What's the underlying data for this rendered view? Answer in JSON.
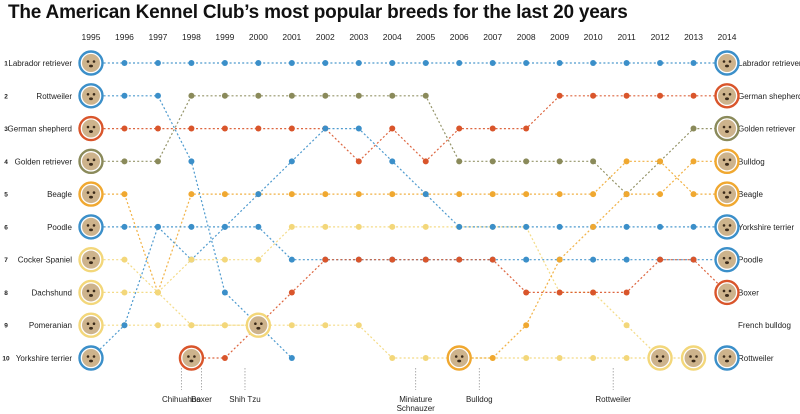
{
  "chart_data": {
    "type": "line",
    "title": "The American Kennel Club’s most popular breeds for the last 20 years",
    "x": [
      1995,
      1996,
      1997,
      1998,
      1999,
      2000,
      2001,
      2002,
      2003,
      2004,
      2005,
      2006,
      2007,
      2008,
      2009,
      2010,
      2011,
      2012,
      2013,
      2014
    ],
    "ranks": [
      1,
      2,
      3,
      4,
      5,
      6,
      7,
      8,
      9,
      10
    ],
    "left_labels": [
      "Labrador retriever",
      "Rottweiler",
      "German shepherd",
      "Golden retriever",
      "Beagle",
      "Poodle",
      "Cocker Spaniel",
      "Dachshund",
      "Pomeranian",
      "Yorkshire terrier"
    ],
    "right_labels": [
      "Labrador retriever",
      "German shepherd",
      "Golden retriever",
      "Bulldog",
      "Beagle",
      "Yorkshire terrier",
      "Poodle",
      "Boxer",
      "French bulldog",
      "Rottweiler"
    ],
    "annotations": [
      {
        "text": "Chihuahua",
        "year": 1997.7
      },
      {
        "text": "Boxer",
        "year": 1998.3
      },
      {
        "text": "Shih Tzu",
        "year": 1999.6
      },
      {
        "text": "Miniature Schnauzer",
        "year": 2004.7
      },
      {
        "text": "Bulldog",
        "year": 2006.6
      },
      {
        "text": "Rottweiler",
        "year": 2010.6
      }
    ],
    "series": [
      {
        "name": "Labrador retriever",
        "color": "#3b8fc9",
        "ranks": [
          1,
          1,
          1,
          1,
          1,
          1,
          1,
          1,
          1,
          1,
          1,
          1,
          1,
          1,
          1,
          1,
          1,
          1,
          1,
          1
        ]
      },
      {
        "name": "Rottweiler",
        "color": "#3b8fc9",
        "ranks": [
          2,
          2,
          2,
          4,
          8,
          9,
          10,
          null,
          null,
          null,
          null,
          null,
          null,
          null,
          null,
          null,
          null,
          null,
          null,
          10
        ]
      },
      {
        "name": "German shepherd",
        "color": "#d9552b",
        "ranks": [
          3,
          3,
          3,
          3,
          3,
          3,
          3,
          3,
          4,
          3,
          4,
          3,
          3,
          3,
          2,
          2,
          2,
          2,
          2,
          2
        ]
      },
      {
        "name": "Golden retriever",
        "color": "#8a8a5a",
        "ranks": [
          4,
          4,
          4,
          2,
          2,
          2,
          2,
          2,
          2,
          2,
          2,
          4,
          4,
          4,
          4,
          4,
          5,
          4,
          3,
          3
        ]
      },
      {
        "name": "Beagle",
        "color": "#f0a830",
        "ranks": [
          5,
          5,
          8,
          5,
          5,
          5,
          5,
          5,
          5,
          5,
          5,
          5,
          5,
          5,
          5,
          5,
          4,
          4,
          5,
          5
        ]
      },
      {
        "name": "Poodle",
        "color": "#3b8fc9",
        "ranks": [
          6,
          6,
          6,
          7,
          6,
          6,
          7,
          7,
          7,
          7,
          7,
          7,
          7,
          7,
          7,
          7,
          7,
          7,
          7,
          7
        ]
      },
      {
        "name": "Cocker Spaniel",
        "color": "#f3d77a",
        "ranks": [
          7,
          7,
          8,
          9,
          9,
          9,
          9,
          9,
          9,
          10,
          10,
          10,
          10,
          10,
          10,
          10,
          10,
          10,
          null,
          null
        ]
      },
      {
        "name": "Dachshund",
        "color": "#f3d77a",
        "ranks": [
          8,
          8,
          8,
          7,
          7,
          7,
          6,
          6,
          6,
          6,
          6,
          6,
          6,
          6,
          8,
          8,
          9,
          10,
          10,
          null
        ]
      },
      {
        "name": "Pomeranian",
        "color": "#f3d77a",
        "ranks": [
          9,
          9,
          9,
          9,
          9,
          9,
          null,
          null,
          null,
          null,
          null,
          null,
          null,
          null,
          null,
          null,
          null,
          null,
          null,
          null
        ]
      },
      {
        "name": "Yorkshire terrier",
        "color": "#3b8fc9",
        "ranks": [
          10,
          9,
          6,
          6,
          6,
          5,
          4,
          3,
          3,
          4,
          5,
          6,
          6,
          6,
          6,
          6,
          6,
          6,
          6,
          6
        ]
      },
      {
        "name": "Boxer",
        "color": "#d9552b",
        "ranks": [
          null,
          null,
          null,
          10,
          10,
          9,
          8,
          7,
          7,
          7,
          7,
          7,
          7,
          8,
          8,
          8,
          8,
          7,
          7,
          8
        ]
      },
      {
        "name": "Bulldog",
        "color": "#f0a830",
        "ranks": [
          null,
          null,
          null,
          null,
          null,
          null,
          null,
          null,
          null,
          null,
          null,
          10,
          10,
          9,
          7,
          6,
          5,
          5,
          4,
          4
        ]
      }
    ]
  }
}
